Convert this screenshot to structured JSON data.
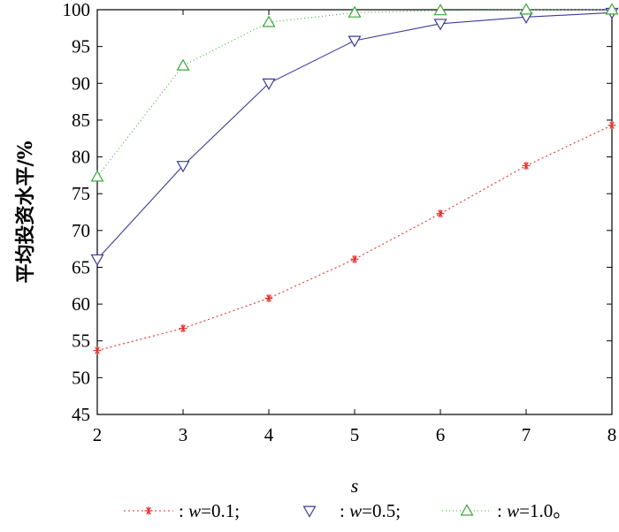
{
  "chart_data": {
    "type": "line",
    "title": "",
    "xlabel": "s",
    "ylabel": "平均投资水平/%",
    "x": [
      2,
      3,
      4,
      5,
      6,
      7,
      8
    ],
    "xlim": [
      2,
      8
    ],
    "ylim": [
      45,
      100
    ],
    "xticks": [
      "2",
      "3",
      "4",
      "5",
      "6",
      "7",
      "8"
    ],
    "yticks": [
      "45",
      "50",
      "55",
      "60",
      "65",
      "70",
      "75",
      "80",
      "85",
      "90",
      "95",
      "100"
    ],
    "grid": false,
    "legend_position": "bottom",
    "series": [
      {
        "id": "w01",
        "legend_prefix": ": ",
        "legend_var": "w",
        "legend_suffix": "=0.1;",
        "color": "#e8302a",
        "marker": "asterisk",
        "dash": "2,3",
        "values": [
          53.7,
          56.7,
          60.8,
          66.1,
          72.3,
          78.8,
          84.3
        ]
      },
      {
        "id": "w05",
        "legend_prefix": ": ",
        "legend_var": "w",
        "legend_suffix": "=0.5;",
        "color": "#3a3a9a",
        "marker": "triangle-down",
        "dash": "",
        "values": [
          66.1,
          78.8,
          90.0,
          95.8,
          98.1,
          99.0,
          99.6
        ]
      },
      {
        "id": "w10",
        "legend_prefix": ": ",
        "legend_var": "w",
        "legend_suffix": "=1.0。",
        "color": "#3aa83a",
        "marker": "triangle-up",
        "dash": "1,3",
        "values": [
          77.3,
          92.4,
          98.3,
          99.6,
          99.9,
          100,
          100
        ]
      }
    ]
  }
}
